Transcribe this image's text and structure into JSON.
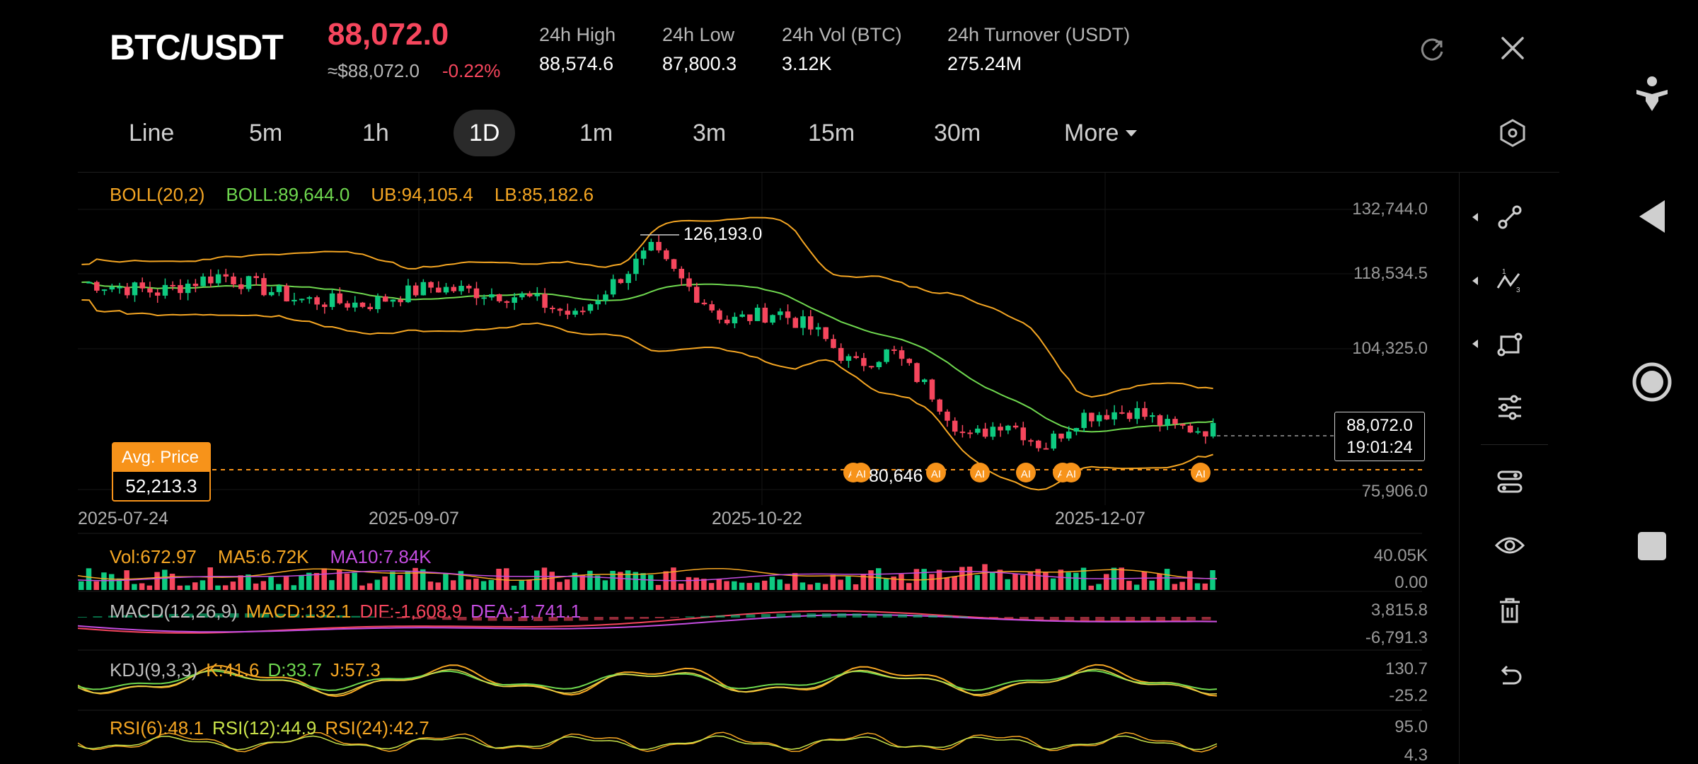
{
  "header": {
    "pair": "BTC/USDT",
    "last_price": "88,072.0",
    "approx_usd": "≈$88,072.0",
    "change_pct": "-0.22%",
    "stats": [
      {
        "label": "24h  High",
        "value": "88,574.6"
      },
      {
        "label": "24h  Low",
        "value": "87,800.3"
      },
      {
        "label": "24h  Vol (BTC)",
        "value": "3.12K"
      },
      {
        "label": "24h  Turnover (USDT)",
        "value": "275.24M"
      }
    ],
    "icons": [
      "refresh-icon",
      "close-icon",
      "hexagon-settings-icon"
    ]
  },
  "tabs": {
    "items": [
      "Line",
      "5m",
      "1h",
      "1D",
      "1m",
      "3m",
      "15m",
      "30m",
      "More"
    ],
    "active": "1D"
  },
  "indicators": {
    "boll": {
      "name": "BOLL(20,2)",
      "mid": "BOLL:89,644.0",
      "ub": "UB:94,105.4",
      "lb": "LB:85,182.6"
    },
    "vol": {
      "v": "Vol:672.97",
      "ma5": "MA5:6.72K",
      "ma10": "MA10:7.84K"
    },
    "macd": {
      "name": "MACD(12,26,9)",
      "macd": "MACD:132.1",
      "dif": "DIF:-1,608.9",
      "dea": "DEA:-1,741.1"
    },
    "kdj": {
      "name": "KDJ(9,3,3)",
      "k": "K:41.6",
      "d": "D:33.7",
      "j": "J:57.3"
    },
    "rsi": {
      "r6": "RSI(6):48.1",
      "r12": "RSI(12):44.9",
      "r24": "RSI(24):42.7"
    }
  },
  "price_axis": [
    "132,744.0",
    "118,534.5",
    "104,325.0",
    "75,906.0"
  ],
  "vol_axis": [
    "40.05K",
    "0.00"
  ],
  "macd_axis": [
    "3,815.8",
    "-6,791.3"
  ],
  "kdj_axis": [
    "130.7",
    "-25.2"
  ],
  "rsi_axis": [
    "95.0",
    "4.3"
  ],
  "dates": [
    "2025-07-24",
    "2025-09-07",
    "2025-10-22",
    "2025-12-07"
  ],
  "avg_price": {
    "label": "Avg. Price",
    "value": "52,213.3"
  },
  "last_marker": {
    "price": "88,072.0",
    "countdown": "19:01:24"
  },
  "peak_label": "126,193.0",
  "low_label": "80,646",
  "ai_marker_label": "AI",
  "tools": [
    "trendline-tool-icon",
    "fib-tool-icon",
    "shape-tool-icon",
    "indicator-settings-icon",
    "layers-icon",
    "visibility-icon",
    "delete-icon",
    "undo-icon"
  ],
  "nav": [
    "accessibility-icon",
    "back-icon",
    "home-icon",
    "recents-icon"
  ],
  "colors": {
    "up": "#0ecb81",
    "down": "#f6465d",
    "boll_mid": "#6fd84f",
    "boll_band": "#f5a623",
    "ma10": "#c44de0",
    "avg": "#f7931a"
  },
  "chart_data": {
    "type": "candlestick",
    "x": [
      "2025-07-24",
      "2025-09-07",
      "2025-10-22",
      "2025-12-07"
    ],
    "ylim": [
      75906.0,
      132744.0
    ],
    "last": 88072.0,
    "high_marker": 126193.0,
    "avg_price": 52213.3
  }
}
